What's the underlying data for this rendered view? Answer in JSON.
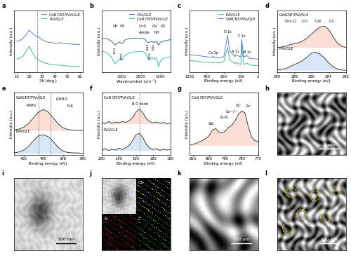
{
  "chart_data": [
    {
      "label": "a",
      "type": "line",
      "xlabel": "2θ (deg.)",
      "ylabel": "Intensity (a.u.)",
      "x": [
        10,
        12.5,
        15,
        17.5,
        20,
        22.5,
        25,
        27.5,
        30,
        32.5,
        35,
        37.5,
        40,
        42.5,
        45,
        47.5,
        50,
        52.5,
        55,
        57.5,
        60
      ],
      "xlim": [
        8,
        62
      ],
      "ylim": [
        0,
        1.4
      ],
      "xticks": [
        10,
        20,
        30,
        40,
        50,
        60
      ],
      "tick_labels": "x",
      "legend": "upper right",
      "reference_lines": [
        26.5
      ],
      "series": [
        {
          "name": "CoN CNT/PVA/GLE",
          "color": "#3b6fd6",
          "values": [
            0.7,
            0.72,
            0.76,
            0.85,
            0.95,
            0.88,
            0.82,
            0.8,
            0.74,
            0.7,
            0.68,
            0.67,
            0.66,
            0.66,
            0.67,
            0.65,
            0.64,
            0.64,
            0.63,
            0.63,
            0.62
          ]
        },
        {
          "name": "PVA/GLE",
          "color": "#2bb57a",
          "values": [
            0.3,
            0.32,
            0.36,
            0.48,
            0.58,
            0.45,
            0.32,
            0.27,
            0.24,
            0.21,
            0.19,
            0.17,
            0.17,
            0.16,
            0.16,
            0.15,
            0.14,
            0.14,
            0.13,
            0.13,
            0.12
          ]
        }
      ]
    },
    {
      "label": "b",
      "type": "line",
      "xlabel": "Wavenumber (cm⁻¹)",
      "ylabel": "Intensity (a.u.)",
      "x": [
        4000,
        3700,
        3500,
        3323,
        3100,
        2952,
        2800,
        2500,
        2200,
        2000,
        1800,
        1644,
        1555,
        1450,
        1346,
        1200,
        1090,
        1000,
        850,
        700,
        500
      ],
      "xlim": [
        4000,
        500
      ],
      "ylim": [
        0,
        1.6
      ],
      "xticks": [
        3000,
        2000,
        1000
      ],
      "tick_labels": "x",
      "legend": "upper right",
      "annotations": [
        "OH",
        "CH",
        "C=O",
        "Amide",
        "NH",
        "CN",
        "CO"
      ],
      "peak_labels": [
        3323,
        2952,
        1644,
        1555,
        1346
      ],
      "series": [
        {
          "name": "PVA/GLE",
          "color": "#1f4e9c",
          "values": [
            0.88,
            0.86,
            0.8,
            0.7,
            0.78,
            0.74,
            0.84,
            0.88,
            0.88,
            0.88,
            0.86,
            0.76,
            0.78,
            0.8,
            0.77,
            0.8,
            0.7,
            0.78,
            0.8,
            0.82,
            0.84
          ]
        },
        {
          "name": "CoN CNT/PVA/GLE",
          "color": "#20b2aa",
          "values": [
            0.55,
            0.5,
            0.38,
            0.22,
            0.34,
            0.32,
            0.45,
            0.52,
            0.53,
            0.54,
            0.52,
            0.36,
            0.3,
            0.38,
            0.34,
            0.38,
            0.15,
            0.3,
            0.36,
            0.38,
            0.4
          ]
        }
      ]
    },
    {
      "label": "c",
      "type": "line",
      "xlabel": "Binding energy (eV)",
      "ylabel": "Intensity (a.u.)",
      "x": [
        1200,
        1100,
        1000,
        900,
        800,
        781,
        760,
        700,
        600,
        532,
        500,
        400,
        399,
        300,
        285,
        250,
        192,
        150,
        100,
        0
      ],
      "xlim": [
        1200,
        0
      ],
      "ylim": [
        0,
        1.6
      ],
      "xticks": [
        1200,
        900,
        600,
        300,
        0
      ],
      "tick_labels": "x",
      "legend": "upper right",
      "peaks": [
        {
          "label": "Co 2p",
          "x": 781
        },
        {
          "label": "O 1s",
          "x": 532
        },
        {
          "label": "N 1s",
          "x": 399
        },
        {
          "label": "C 1s",
          "x": 285
        },
        {
          "label": "B 1s",
          "x": 192
        }
      ],
      "series": [
        {
          "name": "PVA/GLE",
          "color": "#2bb57a",
          "values": [
            0.3,
            0.29,
            0.27,
            0.26,
            0.25,
            0.25,
            0.25,
            0.24,
            0.27,
            0.65,
            0.33,
            0.22,
            0.26,
            0.2,
            0.7,
            0.2,
            0.24,
            0.19,
            0.18,
            0.17
          ]
        },
        {
          "name": "CoNCNT/PVA/GLE",
          "color": "#3b6fd6",
          "values": [
            0.45,
            0.44,
            0.42,
            0.4,
            0.38,
            0.42,
            0.38,
            0.37,
            0.4,
            0.95,
            0.55,
            0.4,
            0.45,
            0.4,
            0.85,
            0.4,
            0.43,
            0.36,
            0.35,
            0.34
          ]
        }
      ]
    },
    {
      "label": "d",
      "type": "spectrum",
      "xlabel": "Binding energy (eV)",
      "ylabel": "Intensity (a.u.)",
      "x": [
        290,
        289.5,
        289,
        288.5,
        288,
        287.5,
        287,
        286.5,
        286,
        285.5,
        285,
        284.5,
        284,
        283.5,
        283,
        282.5,
        282
      ],
      "xlim": [
        290,
        282
      ],
      "ylim": [
        0,
        1.3
      ],
      "xticks": [
        290,
        288,
        286,
        284,
        282
      ],
      "tick_labels": "x",
      "annotations": [
        "O=C-O",
        "C-O",
        "C-N",
        "C-C"
      ],
      "series": [
        {
          "name": "CoNCNT/PVA/GLE",
          "color": "#222222",
          "values": [
            0.52,
            0.53,
            0.55,
            0.58,
            0.6,
            0.62,
            0.66,
            0.72,
            0.8,
            0.88,
            0.95,
            0.97,
            0.9,
            0.75,
            0.62,
            0.55,
            0.52
          ]
        },
        {
          "name": "PVA/GLE",
          "color": "#222222",
          "values": [
            0.05,
            0.06,
            0.08,
            0.12,
            0.16,
            0.2,
            0.25,
            0.32,
            0.4,
            0.42,
            0.38,
            0.3,
            0.2,
            0.12,
            0.07,
            0.05,
            0.04
          ]
        }
      ]
    },
    {
      "label": "e",
      "type": "spectrum",
      "xlabel": "Binding energy (eV)",
      "ylabel": "Intensity (a.u.)",
      "x": [
        403,
        402.5,
        402,
        401.5,
        401,
        400.5,
        400,
        399.5,
        399,
        398.5,
        398,
        397.5,
        397,
        396.5,
        396
      ],
      "xlim": [
        403,
        396
      ],
      "ylim": [
        0,
        1.3
      ],
      "xticks": [
        402,
        400,
        398,
        396
      ],
      "tick_labels": "x",
      "reference_lines": [
        400.5,
        399.3
      ],
      "annotations": [
        "R-NH₂",
        "R-NH-R",
        "N-R"
      ],
      "series": [
        {
          "name": "CoNCNT/PVA/GLE",
          "color": "#222222",
          "values": [
            0.52,
            0.54,
            0.58,
            0.66,
            0.78,
            0.9,
            0.95,
            0.9,
            0.78,
            0.65,
            0.57,
            0.53,
            0.52,
            0.51,
            0.51
          ]
        },
        {
          "name": "PVA/GLE",
          "color": "#222222",
          "values": [
            0.04,
            0.06,
            0.1,
            0.18,
            0.3,
            0.4,
            0.42,
            0.38,
            0.28,
            0.16,
            0.08,
            0.05,
            0.04,
            0.04,
            0.03
          ]
        }
      ]
    },
    {
      "label": "f",
      "type": "spectrum",
      "xlabel": "Binding energy (eV)",
      "ylabel": "Intensity (a.u.)",
      "x": [
        200,
        199,
        198,
        197,
        196,
        195,
        194,
        193,
        192,
        191,
        190,
        189,
        188,
        187,
        186,
        185,
        184,
        183,
        182,
        181,
        180
      ],
      "xlim": [
        200,
        180
      ],
      "ylim": [
        0,
        1.3
      ],
      "xticks": [
        200,
        195,
        190,
        185,
        180
      ],
      "tick_labels": "x",
      "reference_lines": [
        189
      ],
      "annotations": [
        "B-O bond"
      ],
      "series": [
        {
          "name": "CoN CNT/PVA/GLE",
          "color": "#222222",
          "values": [
            0.68,
            0.65,
            0.7,
            0.66,
            0.69,
            0.67,
            0.7,
            0.68,
            0.72,
            0.78,
            0.9,
            0.96,
            0.88,
            0.76,
            0.7,
            0.67,
            0.69,
            0.66,
            0.68,
            0.65,
            0.67
          ]
        },
        {
          "name": "PVA/GLE",
          "color": "#222222",
          "values": [
            0.1,
            0.13,
            0.09,
            0.12,
            0.1,
            0.14,
            0.11,
            0.15,
            0.2,
            0.3,
            0.42,
            0.45,
            0.36,
            0.22,
            0.14,
            0.11,
            0.13,
            0.09,
            0.12,
            0.1,
            0.11
          ]
        }
      ]
    },
    {
      "label": "g",
      "type": "spectrum",
      "xlabel": "Binding energy (eV)",
      "ylabel": "Intensity (a.u.)",
      "x": [
        812,
        810,
        808,
        806,
        804,
        802,
        800,
        798,
        796,
        794,
        792,
        790,
        788,
        786,
        784,
        782,
        780,
        778,
        776,
        774,
        772,
        770
      ],
      "xlim": [
        812,
        770
      ],
      "ylim": [
        0,
        1.3
      ],
      "xticks": [
        810,
        800,
        790,
        780,
        770
      ],
      "tick_labels": "x",
      "annotations": [
        "Sat.",
        "Co-N",
        "Co²⁺/³⁺",
        "Coᴵᴵ",
        "Co⁰"
      ],
      "series": [
        {
          "name": "CoN CNT/PVA/GLE",
          "color": "#222222",
          "values": [
            0.2,
            0.22,
            0.24,
            0.27,
            0.3,
            0.34,
            0.4,
            0.52,
            0.55,
            0.48,
            0.46,
            0.5,
            0.58,
            0.62,
            0.72,
            0.85,
            0.92,
            0.88,
            0.6,
            0.38,
            0.3,
            0.28
          ]
        }
      ]
    }
  ],
  "images": [
    {
      "label": "h",
      "scale_bar": "2 µm"
    },
    {
      "label": "i",
      "scale_bar": "100 nm"
    },
    {
      "label": "j",
      "maps": [
        "Co",
        "N",
        "C"
      ]
    },
    {
      "label": "k",
      "scale_bar": "200 µm"
    },
    {
      "label": "l",
      "scale_bar": "200 µm"
    }
  ]
}
